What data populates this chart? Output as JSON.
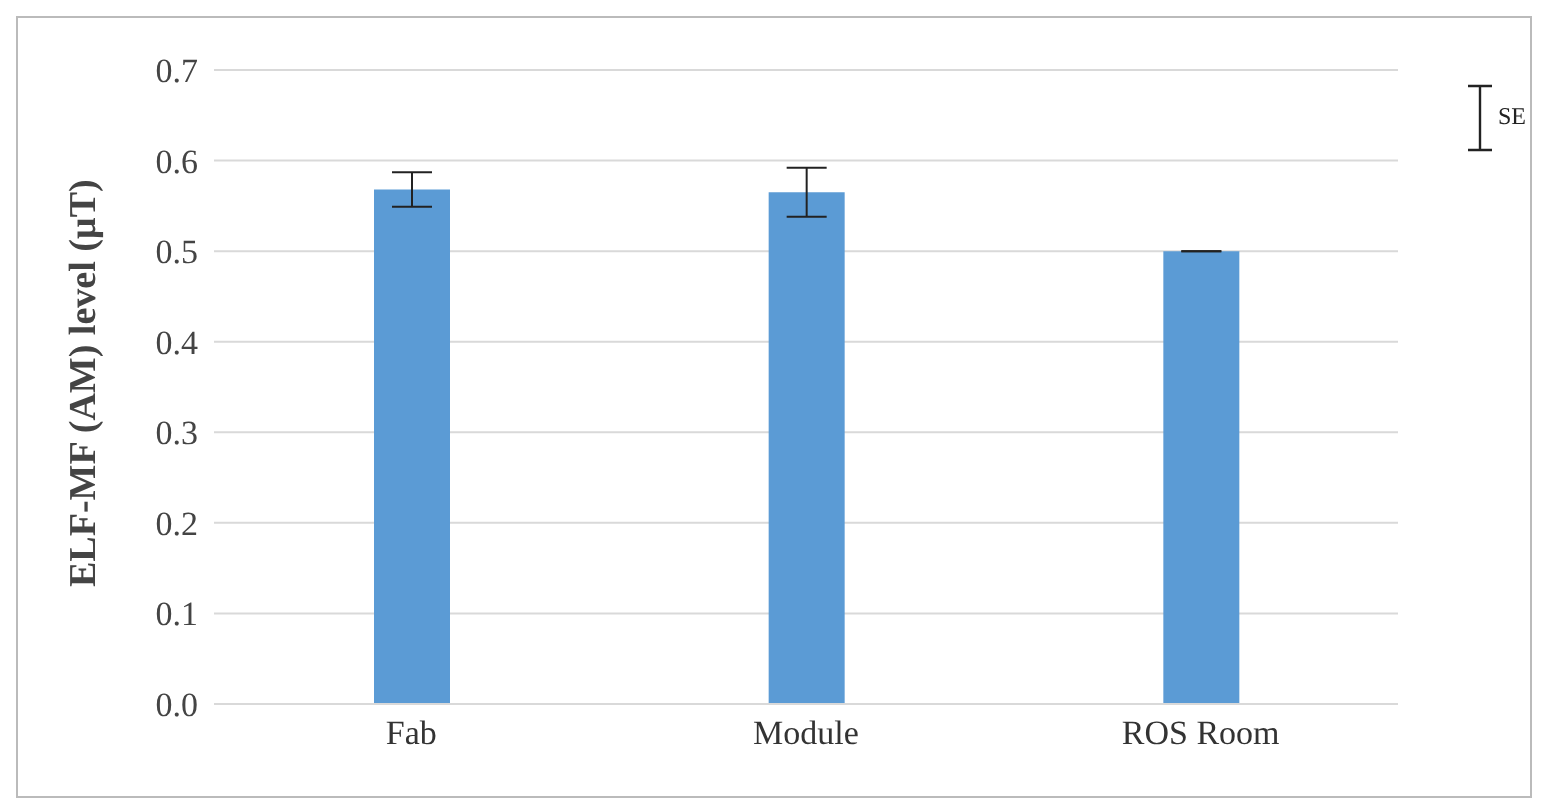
{
  "chart_data": {
    "type": "bar",
    "ylabel": "ELF-MF (AM) level (µT)",
    "categories": [
      "Fab",
      "Module",
      "ROS Room"
    ],
    "values": [
      0.568,
      0.565,
      0.5
    ],
    "errors": [
      0.019,
      0.027,
      null
    ],
    "color": "#5b9bd5",
    "ylim": [
      0,
      0.7
    ],
    "yticks": [
      {
        "value": 0,
        "label": "0.0"
      },
      0.1,
      0.2,
      0.3,
      0.4,
      0.5,
      0.6,
      0.7
    ],
    "grid": "y",
    "annotations": [
      "SE"
    ]
  }
}
